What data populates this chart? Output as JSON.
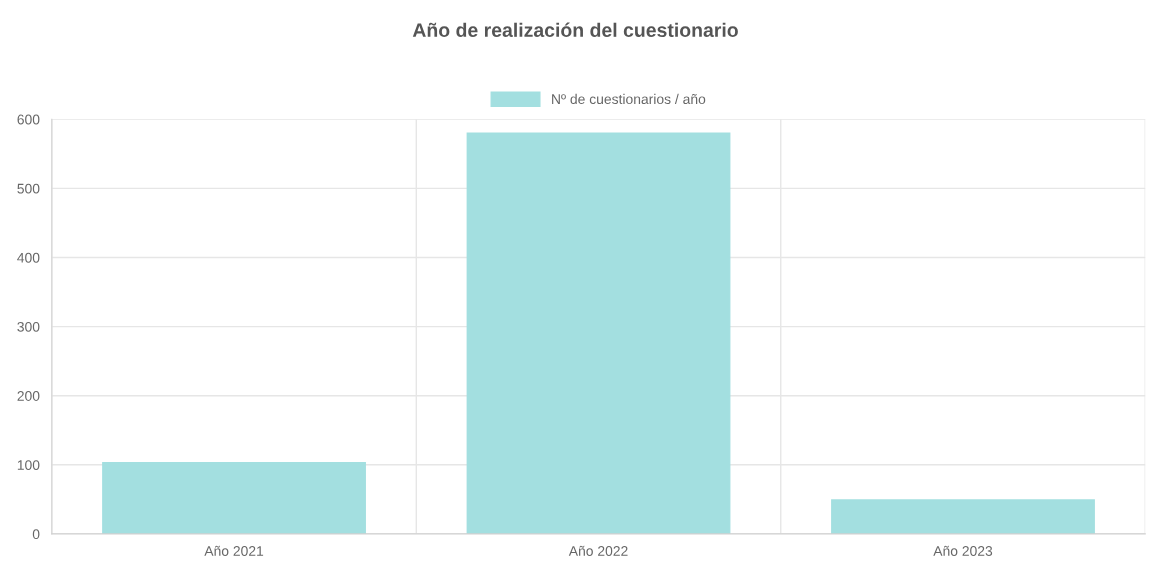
{
  "chart_data": {
    "type": "bar",
    "title": "Año de realización del cuestionario",
    "categories": [
      "Año 2021",
      "Año 2022",
      "Año 2023"
    ],
    "series": [
      {
        "name": "Nº de cuestionarios / año",
        "color": "#a3dfe0",
        "values": [
          103,
          580,
          49
        ]
      }
    ],
    "ylim": [
      0,
      600
    ],
    "yticks": [
      0,
      100,
      200,
      300,
      400,
      500,
      600
    ],
    "grid": true,
    "legend": "top"
  }
}
